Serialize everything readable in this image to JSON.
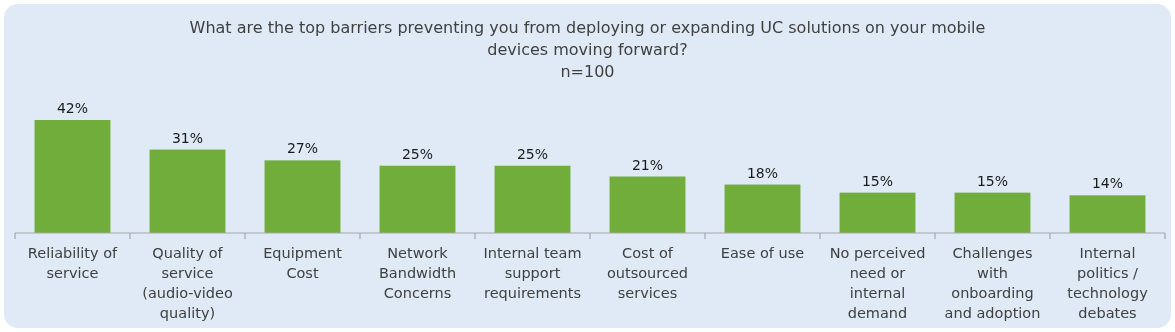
{
  "chart_data": {
    "type": "bar",
    "title": "What are the top barriers preventing you from deploying or expanding UC solutions on your mobile devices moving forward?",
    "subtitle": "n=100",
    "categories": [
      "Reliability of service",
      "Quality of service (audio-video quality)",
      "Equipment Cost",
      "Network Bandwidth Concerns",
      "Internal team support requirements",
      "Cost of outsourced services",
      "Ease of use",
      "No perceived need or internal demand",
      "Challenges with onboarding and adoption",
      "Internal politics / technology debates"
    ],
    "values": [
      42,
      31,
      27,
      25,
      25,
      21,
      18,
      15,
      15,
      14
    ],
    "value_labels": [
      "42%",
      "31%",
      "27%",
      "25%",
      "25%",
      "21%",
      "18%",
      "15%",
      "15%",
      "14%"
    ],
    "color": "#70ad3a"
  }
}
